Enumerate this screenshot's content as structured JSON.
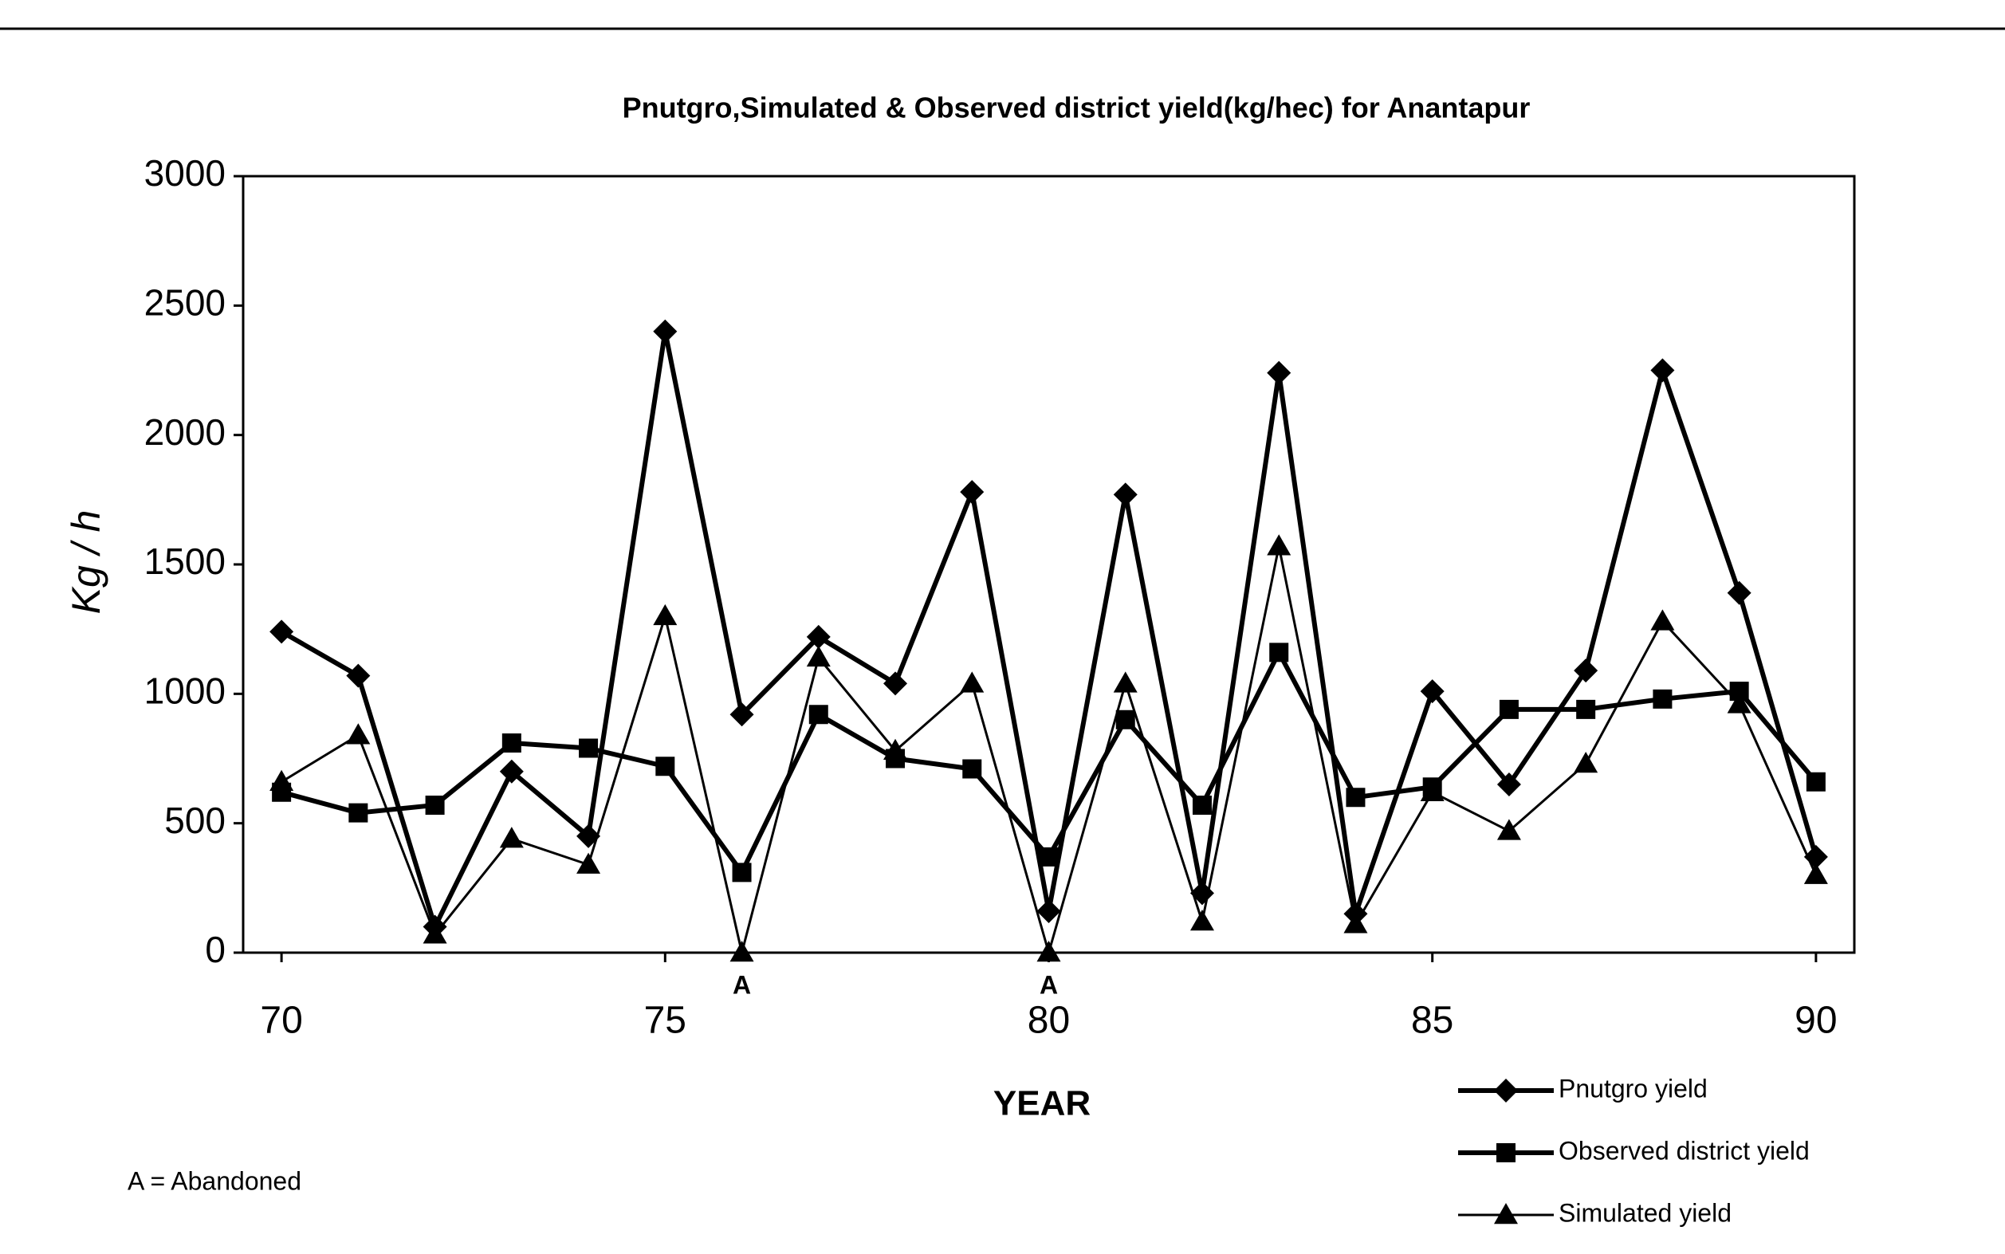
{
  "chart_data": {
    "type": "line",
    "title": "Pnutgro,Simulated & Observed district yield(kg/hec) for Anantapur",
    "x_label": "YEAR",
    "y_label": "Kg / h",
    "x": [
      70,
      71,
      72,
      73,
      74,
      75,
      76,
      77,
      78,
      79,
      80,
      81,
      82,
      83,
      84,
      85,
      86,
      87,
      88,
      89,
      90
    ],
    "series": [
      {
        "name": "Pnutgro yield",
        "color": "#000000",
        "marker": "diamond",
        "values": [
          1240,
          1070,
          100,
          700,
          450,
          2400,
          920,
          1220,
          1040,
          1780,
          160,
          1770,
          230,
          2240,
          150,
          1010,
          650,
          1090,
          2250,
          1390,
          370
        ]
      },
      {
        "name": "Observed district yield",
        "color": "#000000",
        "marker": "square",
        "values": [
          620,
          540,
          570,
          810,
          790,
          720,
          310,
          920,
          750,
          710,
          370,
          900,
          570,
          1160,
          600,
          640,
          940,
          940,
          980,
          1010,
          660
        ]
      },
      {
        "name": "Simulated yield",
        "color": "#000000",
        "marker": "triangle",
        "values": [
          660,
          840,
          70,
          440,
          340,
          1300,
          0,
          1140,
          780,
          1040,
          0,
          1040,
          120,
          1570,
          110,
          620,
          470,
          730,
          1280,
          960,
          300
        ]
      }
    ],
    "xlim": [
      69.5,
      90.5
    ],
    "xticks": [
      70,
      75,
      80,
      85,
      90
    ],
    "ylim": [
      0,
      3000
    ],
    "yticks": [
      0,
      500,
      1000,
      1500,
      2000,
      2500,
      3000
    ],
    "annotations": [
      {
        "text": "A",
        "x": 76
      },
      {
        "text": "A",
        "x": 80
      }
    ],
    "note": "A = Abandoned"
  }
}
